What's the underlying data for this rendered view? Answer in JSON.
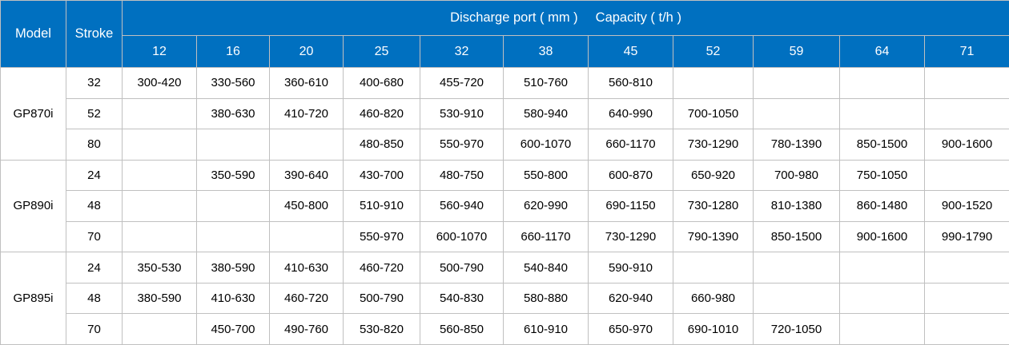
{
  "colors": {
    "header_bg": "#0070c0",
    "header_text": "#ffffff",
    "body_text": "#000000",
    "grid_border": "#c0c0c0"
  },
  "chart_data": {
    "type": "table",
    "title": "Discharge port ( mm )  Capacity ( t/h )",
    "header": {
      "model": "Model",
      "stroke": "Stroke",
      "title_discharge": "Discharge port ( mm )",
      "title_capacity": "Capacity ( t/h )",
      "discharge_ports_mm": [
        "12",
        "16",
        "20",
        "25",
        "32",
        "38",
        "45",
        "52",
        "59",
        "64",
        "71"
      ]
    },
    "groups": [
      {
        "model": "GP870i",
        "rows": [
          {
            "stroke": "32",
            "capacities": [
              "300-420",
              "330-560",
              "360-610",
              "400-680",
              "455-720",
              "510-760",
              "560-810",
              "",
              "",
              "",
              ""
            ]
          },
          {
            "stroke": "52",
            "capacities": [
              "",
              "380-630",
              "410-720",
              "460-820",
              "530-910",
              "580-940",
              "640-990",
              "700-1050",
              "",
              "",
              ""
            ]
          },
          {
            "stroke": "80",
            "capacities": [
              "",
              "",
              "",
              "480-850",
              "550-970",
              "600-1070",
              "660-1170",
              "730-1290",
              "780-1390",
              "850-1500",
              "900-1600"
            ]
          }
        ]
      },
      {
        "model": "GP890i",
        "rows": [
          {
            "stroke": "24",
            "capacities": [
              "",
              "350-590",
              "390-640",
              "430-700",
              "480-750",
              "550-800",
              "600-870",
              "650-920",
              "700-980",
              "750-1050",
              ""
            ]
          },
          {
            "stroke": "48",
            "capacities": [
              "",
              "",
              "450-800",
              "510-910",
              "560-940",
              "620-990",
              "690-1150",
              "730-1280",
              "810-1380",
              "860-1480",
              "900-1520"
            ]
          },
          {
            "stroke": "70",
            "capacities": [
              "",
              "",
              "",
              "550-970",
              "600-1070",
              "660-1170",
              "730-1290",
              "790-1390",
              "850-1500",
              "900-1600",
              "990-1790"
            ]
          }
        ]
      },
      {
        "model": "GP895i",
        "rows": [
          {
            "stroke": "24",
            "capacities": [
              "350-530",
              "380-590",
              "410-630",
              "460-720",
              "500-790",
              "540-840",
              "590-910",
              "",
              "",
              "",
              ""
            ]
          },
          {
            "stroke": "48",
            "capacities": [
              "380-590",
              "410-630",
              "460-720",
              "500-790",
              "540-830",
              "580-880",
              "620-940",
              "660-980",
              "",
              "",
              ""
            ]
          },
          {
            "stroke": "70",
            "capacities": [
              "",
              "450-700",
              "490-760",
              "530-820",
              "560-850",
              "610-910",
              "650-970",
              "690-1010",
              "720-1050",
              "",
              ""
            ]
          }
        ]
      }
    ]
  }
}
